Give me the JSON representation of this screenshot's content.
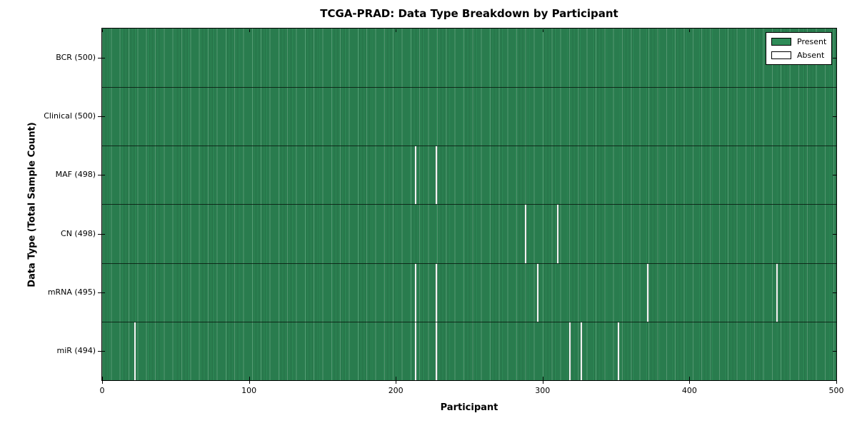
{
  "chart_data": {
    "type": "heatmap",
    "title": "TCGA-PRAD: Data Type Breakdown by Participant",
    "xlabel": "Participant",
    "ylabel": "Data Type (Total Sample Count)",
    "xlim": [
      0,
      500
    ],
    "x_ticks": [
      0,
      100,
      200,
      300,
      400,
      500
    ],
    "n_participants": 500,
    "grid": false,
    "legend_position": "upper right",
    "legend": {
      "entries": [
        {
          "label": "Present",
          "color": "#2e8b57"
        },
        {
          "label": "Absent",
          "color": "#ffffff"
        }
      ]
    },
    "rows": [
      {
        "data_type": "BCR",
        "label": "BCR (500)",
        "total": 500,
        "absent_participants": []
      },
      {
        "data_type": "Clinical",
        "label": "Clinical (500)",
        "total": 500,
        "absent_participants": []
      },
      {
        "data_type": "MAF",
        "label": "MAF (498)",
        "total": 498,
        "absent_participants": [
          213,
          227
        ]
      },
      {
        "data_type": "CN",
        "label": "CN (498)",
        "total": 498,
        "absent_participants": [
          288,
          310
        ]
      },
      {
        "data_type": "mRNA",
        "label": "mRNA (495)",
        "total": 495,
        "absent_participants": [
          213,
          227,
          296,
          371,
          459
        ]
      },
      {
        "data_type": "miR",
        "label": "miR (494)",
        "total": 494,
        "absent_participants": [
          22,
          213,
          227,
          318,
          326,
          351
        ]
      }
    ],
    "colors": {
      "present": "#2e8b57",
      "absent": "#ffffff",
      "frame": "#000000"
    }
  }
}
